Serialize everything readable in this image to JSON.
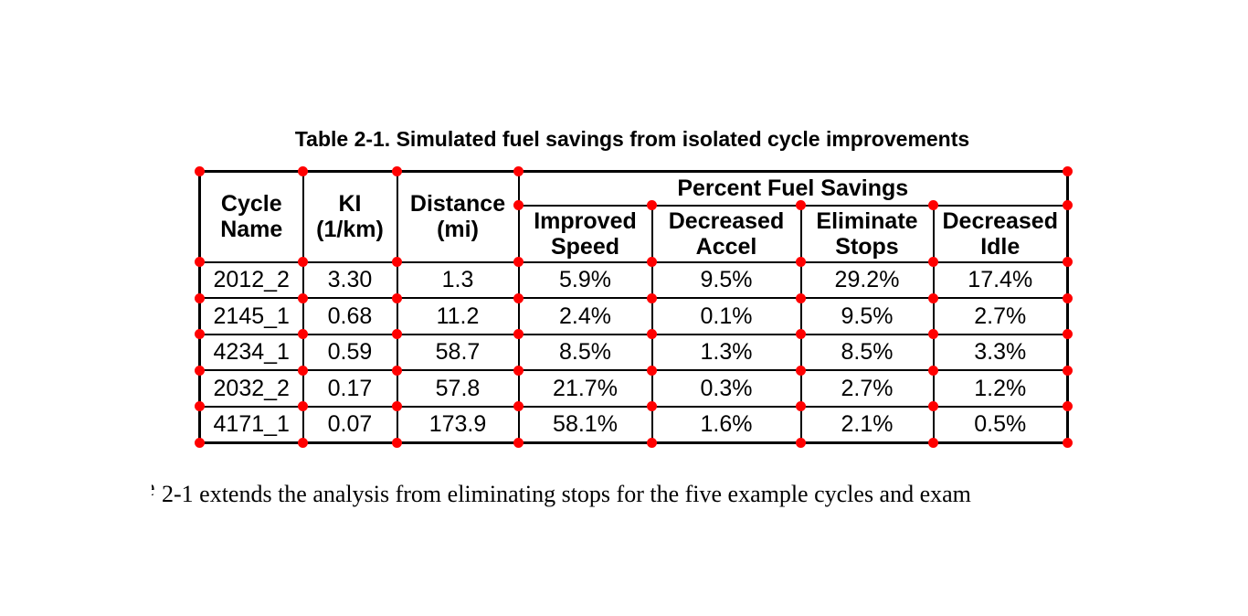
{
  "title": "Table 2-1. Simulated fuel savings from isolated cycle improvements",
  "table": {
    "columns": [
      "Cycle\nName",
      "KI\n(1/km)",
      "Distance\n(mi)"
    ],
    "group_header": "Percent Fuel Savings",
    "sub_columns": [
      "Improved\nSpeed",
      "Decreased\nAccel",
      "Eliminate\nStops",
      "Decreased\nIdle"
    ],
    "rows": [
      [
        "2012_2",
        "3.30",
        "1.3",
        "5.9%",
        "9.5%",
        "29.2%",
        "17.4%"
      ],
      [
        "2145_1",
        "0.68",
        "11.2",
        "2.4%",
        "0.1%",
        "9.5%",
        "2.7%"
      ],
      [
        "4234_1",
        "0.59",
        "58.7",
        "8.5%",
        "1.3%",
        "8.5%",
        "3.3%"
      ],
      [
        "2032_2",
        "0.17",
        "57.8",
        "21.7%",
        "0.3%",
        "2.7%",
        "1.2%"
      ],
      [
        "4171_1",
        "0.07",
        "173.9",
        "58.1%",
        "1.6%",
        "2.1%",
        "0.5%"
      ]
    ]
  },
  "caption": {
    "fragment": "e",
    "text": "2-1 extends the analysis from eliminating stops for the five example cycles and exam"
  },
  "annotations": {
    "dot_color": "#ff0000"
  }
}
